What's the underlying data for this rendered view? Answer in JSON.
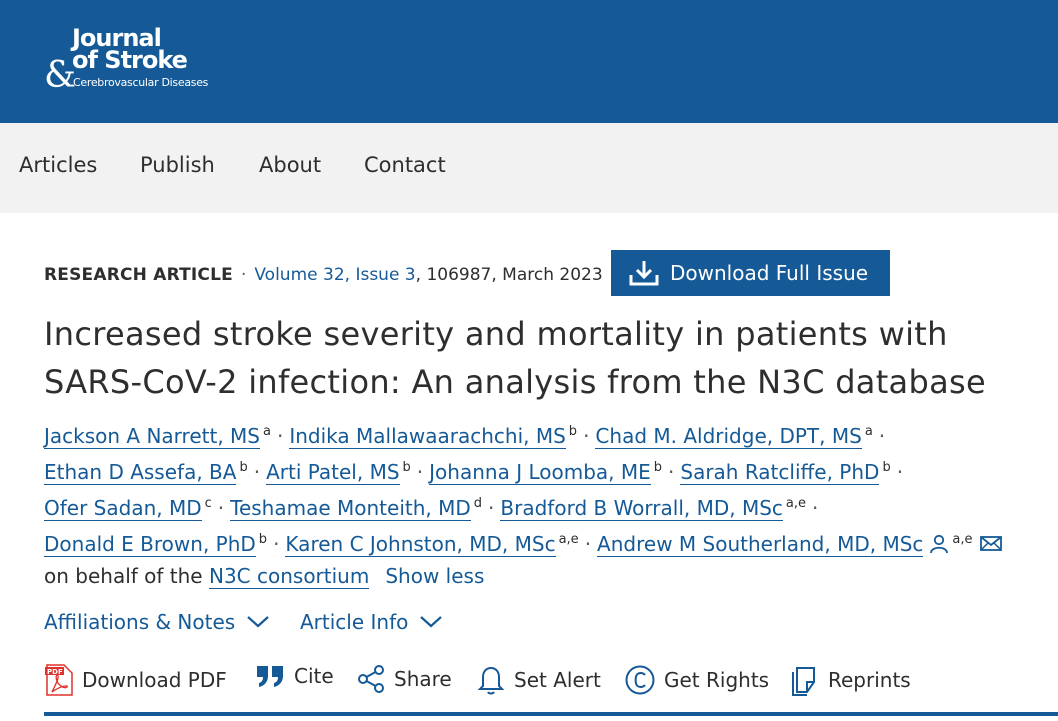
{
  "header": {
    "logo_line1": "Journal",
    "logo_line2": "of Stroke",
    "logo_amp": "&",
    "logo_line3": "Cerebrovascular Diseases"
  },
  "nav": [
    "Articles",
    "Publish",
    "About",
    "Contact"
  ],
  "article": {
    "type": "RESEARCH ARTICLE",
    "volume_link": "Volume 32, Issue 3",
    "citation_rest": ", 106987, March 2023",
    "download_issue": "Download Full Issue",
    "title": "Increased stroke severity and mortality in patients with SARS-CoV-2 infection: An analysis from the N3C database"
  },
  "authors": {
    "a1": "Jackson A Narrett, MS",
    "a1_sup": "a",
    "a2": "Indika Mallawaarachchi, MS",
    "a2_sup": "b",
    "a3": "Chad M. Aldridge, DPT, MS",
    "a3_sup": "a",
    "a4": "Ethan D Assefa, BA",
    "a4_sup": "b",
    "a5": "Arti Patel, MS",
    "a5_sup": "b",
    "a6": "Johanna J Loomba, ME",
    "a6_sup": "b",
    "a7": "Sarah Ratcliffe, PhD",
    "a7_sup": "b",
    "a8": "Ofer Sadan, MD",
    "a8_sup": "c",
    "a9": "Teshamae Monteith, MD",
    "a9_sup": "d",
    "a10": "Bradford B Worrall, MD, MSc",
    "a10_sup": "a,e",
    "a11": "Donald E Brown, PhD",
    "a11_sup": "b",
    "a12": "Karen C Johnston, MD, MSc",
    "a12_sup": "a,e",
    "a13": "Andrew M Southerland, MD, MSc",
    "a13_sup": "a,e",
    "behalf_text": "on behalf of the ",
    "consortium": "N3C consortium",
    "show_less": "Show less"
  },
  "expanders": {
    "affiliations": "Affiliations & Notes",
    "article_info": "Article Info"
  },
  "tools": {
    "download_pdf": "Download PDF",
    "cite": "Cite",
    "share": "Share",
    "set_alert": "Set Alert",
    "get_rights": "Get Rights",
    "reprints": "Reprints"
  },
  "colors": {
    "brand": "#155a97",
    "nav_bg": "#f2f2f2",
    "pdf_red": "#e0312d"
  }
}
